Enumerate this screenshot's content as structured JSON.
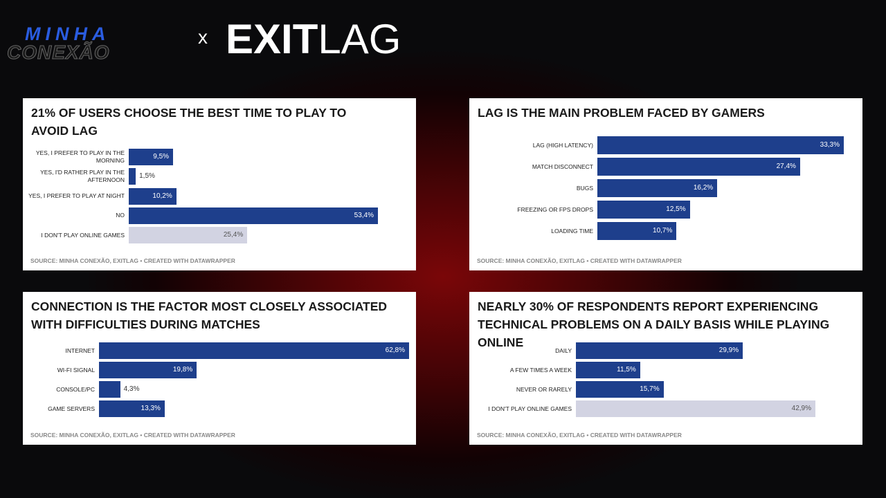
{
  "header": {
    "brand_top": "MINHA",
    "brand_bottom": "CONEXÃO",
    "separator": "x",
    "partner_bold": "EXIT",
    "partner_light": "LAG"
  },
  "chart_data": [
    {
      "type": "bar",
      "title": "21% OF USERS CHOOSE THE BEST TIME TO PLAY TO AVOID LAG",
      "categories": [
        "YES, I PREFER TO PLAY IN THE MORNING",
        "YES, I'D RATHER PLAY IN THE AFTERNOON",
        "YES, I PREFER TO PLAY AT NIGHT",
        "NO",
        "I DON'T PLAY ONLINE GAMES"
      ],
      "values": [
        9.5,
        1.5,
        10.2,
        53.4,
        25.4
      ],
      "value_labels": [
        "9,5%",
        "1,5%",
        "10,2%",
        "53,4%",
        "25,4%"
      ],
      "colors": [
        "#1e3f8c",
        "#1e3f8c",
        "#1e3f8c",
        "#1e3f8c",
        "#d2d3e2"
      ],
      "source": "SOURCE: MINHA CONEXÃO, EXITLAG • CREATED WITH DATAWRAPPER"
    },
    {
      "type": "bar",
      "title": "LAG IS THE MAIN PROBLEM FACED BY GAMERS",
      "categories": [
        "LAG (HIGH LATENCY)",
        "MATCH DISCONNECT",
        "BUGS",
        "FREEZING OR FPS DROPS",
        "LOADING TIME"
      ],
      "values": [
        33.3,
        27.4,
        16.2,
        12.5,
        10.7
      ],
      "value_labels": [
        "33,3%",
        "27,4%",
        "16,2%",
        "12,5%",
        "10,7%"
      ],
      "colors": [
        "#1e3f8c",
        "#1e3f8c",
        "#1e3f8c",
        "#1e3f8c",
        "#1e3f8c"
      ],
      "source": "SOURCE: MINHA CONEXÃO, EXITLAG • CREATED WITH DATAWRAPPER"
    },
    {
      "type": "bar",
      "title": "CONNECTION IS THE FACTOR MOST CLOSELY ASSOCIATED WITH DIFFICULTIES DURING MATCHES",
      "categories": [
        "INTERNET",
        "WI-FI SIGNAL",
        "CONSOLE/PC",
        "GAME SERVERS"
      ],
      "values": [
        62.8,
        19.8,
        4.3,
        13.3
      ],
      "value_labels": [
        "62,8%",
        "19,8%",
        "4,3%",
        "13,3%"
      ],
      "colors": [
        "#1e3f8c",
        "#1e3f8c",
        "#1e3f8c",
        "#1e3f8c"
      ],
      "source": "SOURCE: MINHA CONEXÃO, EXITLAG • CREATED WITH DATAWRAPPER"
    },
    {
      "type": "bar",
      "title": "NEARLY 30% OF RESPONDENTS REPORT EXPERIENCING TECHNICAL PROBLEMS ON A DAILY BASIS WHILE PLAYING ONLINE",
      "categories": [
        "DAILY",
        "A FEW TIMES A WEEK",
        "NEVER OR RARELY",
        "I DON'T PLAY ONLINE GAMES"
      ],
      "values": [
        29.9,
        11.5,
        15.7,
        42.9
      ],
      "value_labels": [
        "29,9%",
        "11,5%",
        "15,7%",
        "42,9%"
      ],
      "colors": [
        "#1e3f8c",
        "#1e3f8c",
        "#1e3f8c",
        "#d2d3e2"
      ],
      "source": "SOURCE: MINHA CONEXÃO, EXITLAG • CREATED WITH DATAWRAPPER"
    }
  ]
}
